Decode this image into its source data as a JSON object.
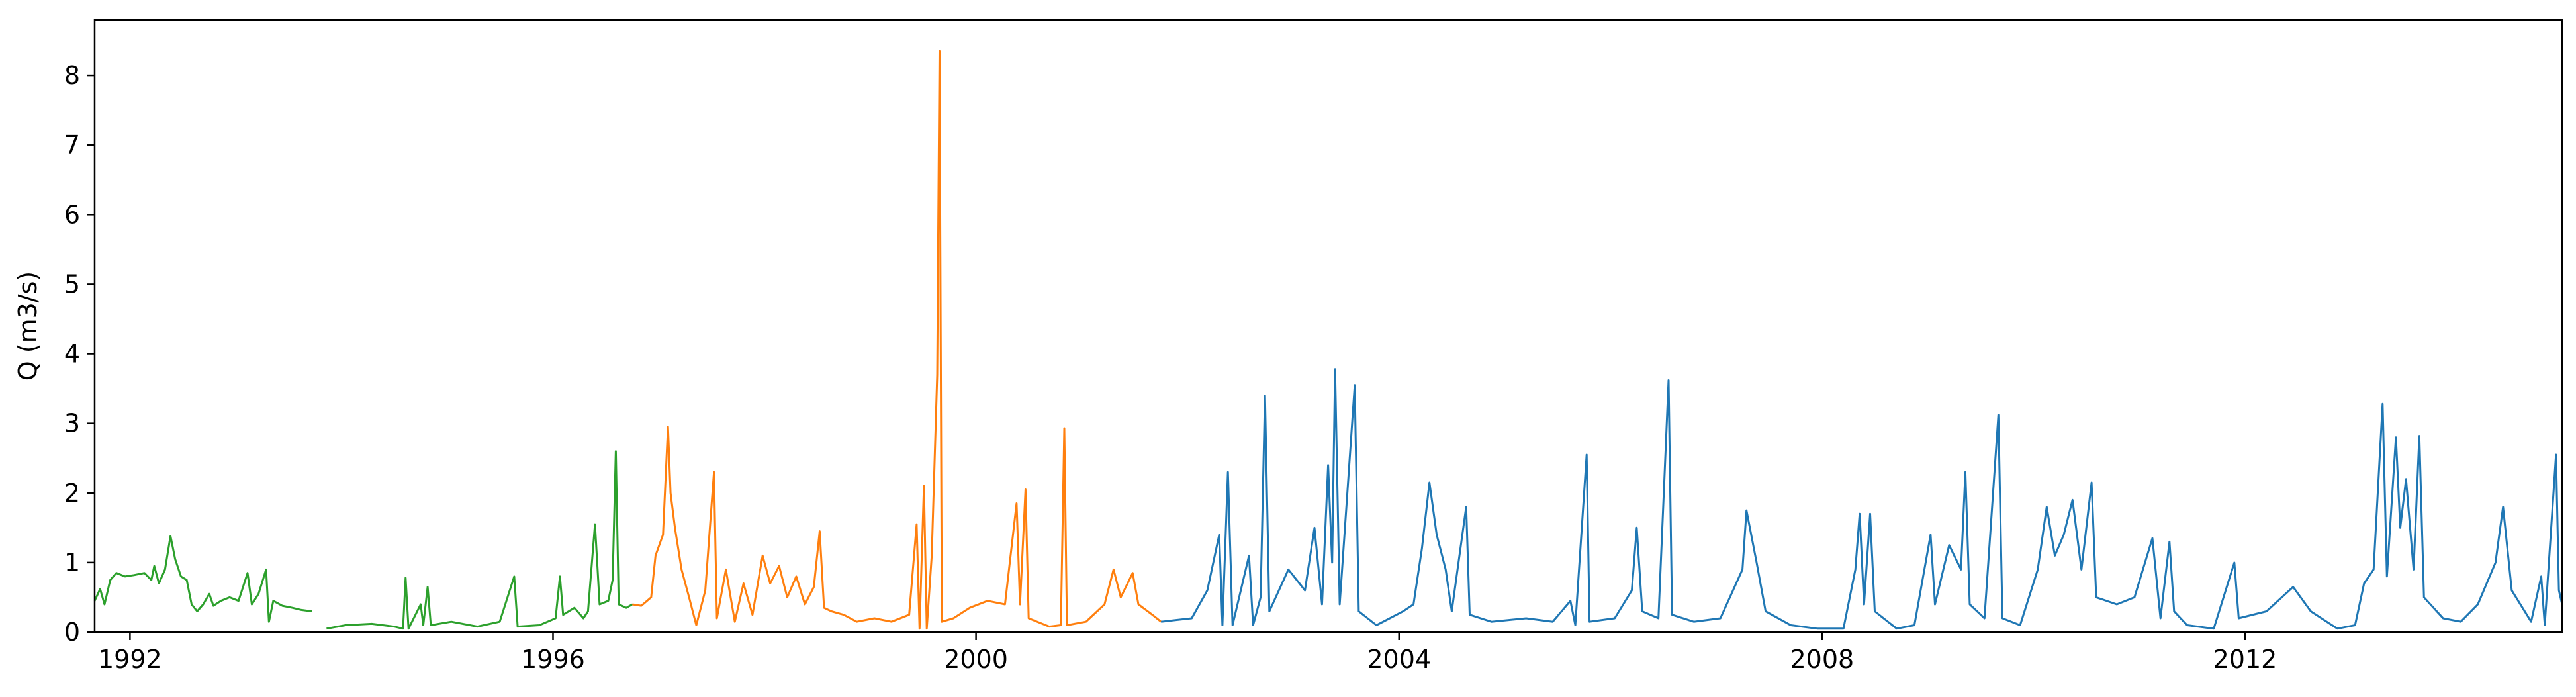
{
  "chart_data": {
    "type": "line",
    "title": "",
    "xlabel": "",
    "ylabel": "Q (m3/s)",
    "xlim": [
      "1991-09-01",
      "2014-12-31"
    ],
    "ylim": [
      0,
      8.8
    ],
    "x_ticks": [
      "1992",
      "1996",
      "2000",
      "2004",
      "2008",
      "2012"
    ],
    "y_ticks": [
      "0",
      "1",
      "2",
      "3",
      "4",
      "5",
      "6",
      "7",
      "8"
    ],
    "grid": false,
    "legend": "none",
    "series": [
      {
        "color": "#2ca02c",
        "points": [
          [
            "1991-09-01",
            0.45
          ],
          [
            "1991-09-20",
            0.62
          ],
          [
            "1991-10-05",
            0.4
          ],
          [
            "1991-10-25",
            0.75
          ],
          [
            "1991-11-15",
            0.85
          ],
          [
            "1991-12-15",
            0.8
          ],
          [
            "1992-01-15",
            0.82
          ],
          [
            "1992-02-20",
            0.85
          ],
          [
            "1992-03-15",
            0.75
          ],
          [
            "1992-03-25",
            0.95
          ],
          [
            "1992-04-10",
            0.7
          ],
          [
            "1992-05-01",
            0.9
          ],
          [
            "1992-05-20",
            1.38
          ],
          [
            "1992-06-05",
            1.05
          ],
          [
            "1992-06-25",
            0.8
          ],
          [
            "1992-07-15",
            0.75
          ],
          [
            "1992-08-01",
            0.4
          ],
          [
            "1992-08-20",
            0.3
          ],
          [
            "1992-09-10",
            0.4
          ],
          [
            "1992-10-01",
            0.55
          ],
          [
            "1992-10-15",
            0.38
          ],
          [
            "1992-11-10",
            0.45
          ],
          [
            "1992-12-10",
            0.5
          ],
          [
            "1993-01-10",
            0.45
          ],
          [
            "1993-02-10",
            0.85
          ],
          [
            "1993-02-25",
            0.4
          ],
          [
            "1993-03-20",
            0.55
          ],
          [
            "1993-04-15",
            0.9
          ],
          [
            "1993-04-25",
            0.15
          ],
          [
            "1993-05-10",
            0.45
          ],
          [
            "1993-06-10",
            0.38
          ],
          [
            "1993-07-15",
            0.35
          ],
          [
            "1993-08-15",
            0.32
          ],
          [
            "1993-09-20",
            0.3
          ],
          null,
          [
            "1993-11-10",
            0.05
          ],
          [
            "1994-01-15",
            0.1
          ],
          [
            "1994-04-15",
            0.12
          ],
          [
            "1994-07-01",
            0.08
          ],
          [
            "1994-08-01",
            0.05
          ],
          [
            "1994-08-10",
            0.78
          ],
          [
            "1994-08-20",
            0.05
          ],
          [
            "1994-10-01",
            0.4
          ],
          [
            "1994-10-10",
            0.1
          ],
          [
            "1994-10-25",
            0.65
          ],
          [
            "1994-11-05",
            0.1
          ],
          [
            "1995-01-15",
            0.15
          ],
          [
            "1995-04-15",
            0.08
          ],
          [
            "1995-07-01",
            0.15
          ],
          [
            "1995-08-20",
            0.8
          ],
          [
            "1995-09-01",
            0.08
          ],
          [
            "1995-11-15",
            0.1
          ],
          [
            "1996-01-10",
            0.2
          ],
          [
            "1996-01-25",
            0.8
          ],
          [
            "1996-02-05",
            0.25
          ],
          [
            "1996-03-15",
            0.35
          ],
          [
            "1996-04-15",
            0.2
          ],
          [
            "1996-05-01",
            0.3
          ],
          [
            "1996-05-25",
            1.55
          ],
          [
            "1996-06-10",
            0.4
          ],
          [
            "1996-07-10",
            0.45
          ],
          [
            "1996-07-25",
            0.75
          ],
          [
            "1996-08-05",
            2.6
          ],
          [
            "1996-08-15",
            0.4
          ],
          [
            "1996-09-10",
            0.35
          ],
          [
            "1996-10-01",
            0.4
          ]
        ]
      },
      {
        "color": "#ff7f0e",
        "points": [
          [
            "1996-10-01",
            0.4
          ],
          [
            "1996-11-01",
            0.38
          ],
          [
            "1996-12-05",
            0.5
          ],
          [
            "1996-12-20",
            1.1
          ],
          [
            "1997-01-15",
            1.4
          ],
          [
            "1997-02-01",
            2.95
          ],
          [
            "1997-02-10",
            2.0
          ],
          [
            "1997-02-25",
            1.5
          ],
          [
            "1997-03-20",
            0.9
          ],
          [
            "1997-04-15",
            0.5
          ],
          [
            "1997-05-10",
            0.1
          ],
          [
            "1997-06-10",
            0.6
          ],
          [
            "1997-07-10",
            2.3
          ],
          [
            "1997-07-20",
            0.2
          ],
          [
            "1997-08-20",
            0.9
          ],
          [
            "1997-09-20",
            0.15
          ],
          [
            "1997-10-20",
            0.7
          ],
          [
            "1997-11-20",
            0.25
          ],
          [
            "1997-12-25",
            1.1
          ],
          [
            "1998-01-20",
            0.7
          ],
          [
            "1998-02-20",
            0.95
          ],
          [
            "1998-03-20",
            0.5
          ],
          [
            "1998-04-20",
            0.8
          ],
          [
            "1998-05-20",
            0.4
          ],
          [
            "1998-06-20",
            0.65
          ],
          [
            "1998-07-10",
            1.45
          ],
          [
            "1998-07-25",
            0.35
          ],
          [
            "1998-08-20",
            0.3
          ],
          [
            "1998-10-01",
            0.25
          ],
          [
            "1998-11-15",
            0.15
          ],
          [
            "1999-01-15",
            0.2
          ],
          [
            "1999-03-15",
            0.15
          ],
          [
            "1999-05-15",
            0.25
          ],
          [
            "1999-06-10",
            1.55
          ],
          [
            "1999-06-20",
            0.05
          ],
          [
            "1999-07-05",
            2.1
          ],
          [
            "1999-07-15",
            0.05
          ],
          [
            "1999-08-01",
            1.1
          ],
          [
            "1999-08-20",
            3.7
          ],
          [
            "1999-08-28",
            8.35
          ],
          [
            "1999-09-05",
            0.15
          ],
          [
            "1999-10-15",
            0.2
          ],
          [
            "1999-12-10",
            0.35
          ],
          [
            "2000-02-10",
            0.45
          ],
          [
            "2000-04-10",
            0.4
          ],
          [
            "2000-05-20",
            1.85
          ],
          [
            "2000-06-01",
            0.4
          ],
          [
            "2000-06-20",
            2.05
          ],
          [
            "2000-07-01",
            0.2
          ],
          [
            "2000-09-10",
            0.08
          ],
          [
            "2000-10-20",
            0.1
          ],
          [
            "2000-11-01",
            2.93
          ],
          [
            "2000-11-10",
            0.1
          ],
          [
            "2001-01-15",
            0.15
          ],
          [
            "2001-03-20",
            0.4
          ],
          [
            "2001-04-20",
            0.9
          ],
          [
            "2001-05-15",
            0.5
          ],
          [
            "2001-06-25",
            0.85
          ],
          [
            "2001-07-15",
            0.4
          ],
          [
            "2001-09-01",
            0.25
          ],
          [
            "2001-10-01",
            0.15
          ]
        ]
      },
      {
        "color": "#1f77b4",
        "points": [
          [
            "2001-10-01",
            0.15
          ],
          [
            "2002-01-15",
            0.2
          ],
          [
            "2002-03-10",
            0.6
          ],
          [
            "2002-04-20",
            1.4
          ],
          [
            "2002-05-01",
            0.1
          ],
          [
            "2002-05-20",
            2.3
          ],
          [
            "2002-06-05",
            0.1
          ],
          [
            "2002-08-01",
            1.1
          ],
          [
            "2002-08-15",
            0.1
          ],
          [
            "2002-09-10",
            0.5
          ],
          [
            "2002-09-25",
            3.4
          ],
          [
            "2002-10-10",
            0.3
          ],
          [
            "2002-12-15",
            0.9
          ],
          [
            "2003-02-10",
            0.6
          ],
          [
            "2003-03-15",
            1.5
          ],
          [
            "2003-04-10",
            0.4
          ],
          [
            "2003-05-01",
            2.4
          ],
          [
            "2003-05-15",
            1.0
          ],
          [
            "2003-05-25",
            3.78
          ],
          [
            "2003-06-10",
            0.4
          ],
          [
            "2003-08-01",
            3.55
          ],
          [
            "2003-08-15",
            0.3
          ],
          [
            "2003-10-15",
            0.1
          ],
          [
            "2004-01-15",
            0.3
          ],
          [
            "2004-02-20",
            0.4
          ],
          [
            "2004-03-20",
            1.2
          ],
          [
            "2004-04-15",
            2.15
          ],
          [
            "2004-05-10",
            1.4
          ],
          [
            "2004-06-10",
            0.9
          ],
          [
            "2004-07-01",
            0.3
          ],
          [
            "2004-08-20",
            1.8
          ],
          [
            "2004-09-01",
            0.25
          ],
          [
            "2004-11-15",
            0.15
          ],
          [
            "2005-03-15",
            0.2
          ],
          [
            "2005-06-15",
            0.15
          ],
          [
            "2005-08-15",
            0.45
          ],
          [
            "2005-09-01",
            0.1
          ],
          [
            "2005-10-10",
            2.55
          ],
          [
            "2005-10-20",
            0.15
          ],
          [
            "2006-01-15",
            0.2
          ],
          [
            "2006-03-15",
            0.6
          ],
          [
            "2006-04-01",
            1.5
          ],
          [
            "2006-04-20",
            0.3
          ],
          [
            "2006-06-15",
            0.2
          ],
          [
            "2006-07-20",
            3.62
          ],
          [
            "2006-08-01",
            0.25
          ],
          [
            "2006-10-15",
            0.15
          ],
          [
            "2007-01-15",
            0.2
          ],
          [
            "2007-04-01",
            0.9
          ],
          [
            "2007-04-15",
            1.75
          ],
          [
            "2007-05-20",
            1.0
          ],
          [
            "2007-06-20",
            0.3
          ],
          [
            "2007-09-15",
            0.1
          ],
          [
            "2007-12-15",
            0.05
          ],
          [
            "2008-03-15",
            0.05
          ],
          [
            "2008-04-25",
            0.9
          ],
          [
            "2008-05-10",
            1.7
          ],
          [
            "2008-05-25",
            0.4
          ],
          [
            "2008-06-15",
            1.7
          ],
          [
            "2008-07-01",
            0.3
          ],
          [
            "2008-09-15",
            0.05
          ],
          [
            "2008-11-15",
            0.1
          ],
          [
            "2009-01-10",
            1.4
          ],
          [
            "2009-01-25",
            0.4
          ],
          [
            "2009-03-15",
            1.25
          ],
          [
            "2009-04-25",
            0.9
          ],
          [
            "2009-05-10",
            2.3
          ],
          [
            "2009-05-25",
            0.4
          ],
          [
            "2009-07-15",
            0.2
          ],
          [
            "2009-09-01",
            3.12
          ],
          [
            "2009-09-15",
            0.2
          ],
          [
            "2009-11-15",
            0.1
          ],
          [
            "2010-01-15",
            0.9
          ],
          [
            "2010-02-15",
            1.8
          ],
          [
            "2010-03-15",
            1.1
          ],
          [
            "2010-04-15",
            1.4
          ],
          [
            "2010-05-15",
            1.9
          ],
          [
            "2010-06-15",
            0.9
          ],
          [
            "2010-07-20",
            2.15
          ],
          [
            "2010-08-05",
            0.5
          ],
          [
            "2010-10-15",
            0.4
          ],
          [
            "2010-12-15",
            0.5
          ],
          [
            "2011-02-15",
            1.35
          ],
          [
            "2011-03-15",
            0.2
          ],
          [
            "2011-04-15",
            1.3
          ],
          [
            "2011-05-01",
            0.3
          ],
          [
            "2011-06-15",
            0.1
          ],
          [
            "2011-09-15",
            0.05
          ],
          [
            "2011-11-25",
            1.0
          ],
          [
            "2011-12-10",
            0.2
          ],
          [
            "2012-03-15",
            0.3
          ],
          [
            "2012-06-15",
            0.65
          ],
          [
            "2012-08-15",
            0.3
          ],
          [
            "2012-11-15",
            0.05
          ],
          [
            "2013-01-15",
            0.1
          ],
          [
            "2013-02-15",
            0.7
          ],
          [
            "2013-03-20",
            0.9
          ],
          [
            "2013-04-20",
            3.28
          ],
          [
            "2013-05-05",
            0.8
          ],
          [
            "2013-06-05",
            2.8
          ],
          [
            "2013-06-20",
            1.5
          ],
          [
            "2013-07-10",
            2.2
          ],
          [
            "2013-08-05",
            0.9
          ],
          [
            "2013-08-25",
            2.82
          ],
          [
            "2013-09-10",
            0.5
          ],
          [
            "2013-11-15",
            0.2
          ],
          [
            "2014-01-15",
            0.15
          ],
          [
            "2014-03-15",
            0.4
          ],
          [
            "2014-05-15",
            1.0
          ],
          [
            "2014-06-10",
            1.8
          ],
          [
            "2014-07-10",
            0.6
          ],
          [
            "2014-09-15",
            0.15
          ],
          [
            "2014-10-20",
            0.8
          ],
          [
            "2014-11-01",
            0.1
          ],
          [
            "2014-12-10",
            2.55
          ],
          [
            "2014-12-20",
            0.6
          ],
          [
            "2014-12-31",
            0.4
          ]
        ]
      }
    ]
  }
}
